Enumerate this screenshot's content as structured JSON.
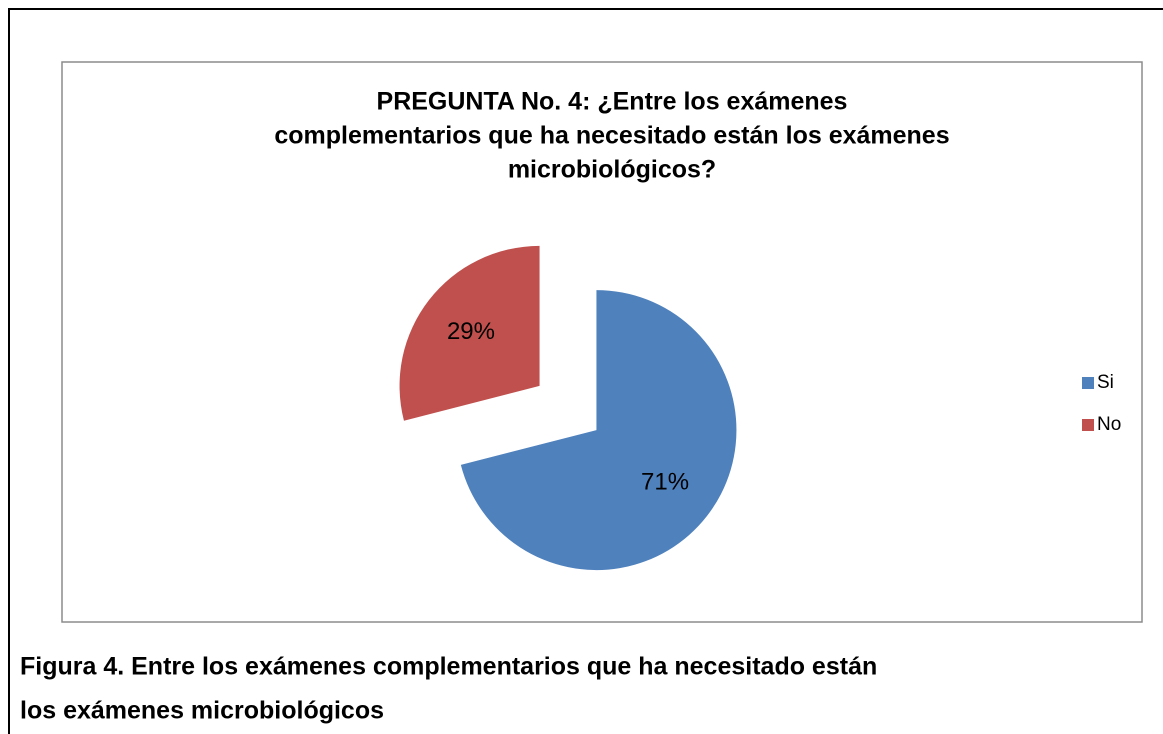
{
  "chart_data": {
    "type": "pie",
    "title": [
      "PREGUNTA No. 4: ¿Entre los exámenes",
      "complementarios que ha necesitado están los exámenes",
      "microbiológicos?"
    ],
    "categories": [
      "Si",
      "No"
    ],
    "values": [
      71,
      29
    ],
    "value_labels": [
      "71%",
      "29%"
    ],
    "colors": [
      "#4f81bd",
      "#c0504d"
    ],
    "legend": "right"
  },
  "caption": [
    "Figura 4. Entre los exámenes complementarios que ha necesitado están",
    "los exámenes microbiológicos"
  ]
}
